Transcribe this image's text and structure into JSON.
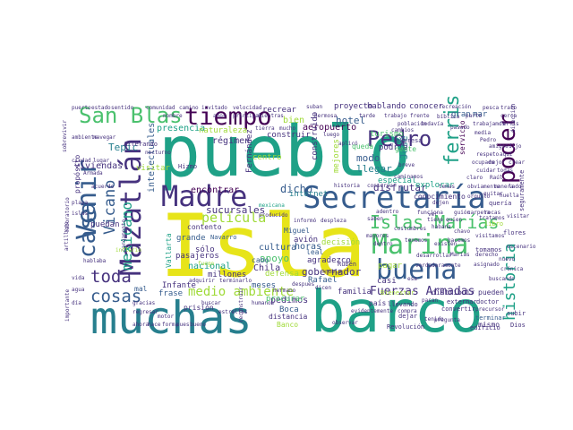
{
  "cloud": {
    "background": "#ffffff",
    "palette": {
      "yellow": "#e7e419",
      "lime": "#a0da39",
      "green": "#4ac16d",
      "teal": "#1fa187",
      "blue": "#277f8e",
      "navy": "#365c8d",
      "indigo": "#46327e",
      "purple": "#440154"
    },
    "words": [
      {
        "text": "pueblo",
        "color": "teal"
      },
      {
        "text": "Isla",
        "color": "yellow"
      },
      {
        "text": "barco",
        "color": "teal"
      },
      {
        "text": "muchas",
        "color": "blue"
      },
      {
        "text": "Secretaría",
        "color": "navy"
      },
      {
        "text": "Madre",
        "color": "indigo"
      },
      {
        "text": "Marina",
        "color": "green"
      },
      {
        "text": "buena",
        "color": "navy"
      },
      {
        "text": "Mazatlán",
        "color": "indigo"
      },
      {
        "text": "tiempo",
        "color": "purple"
      },
      {
        "text": "San Blas",
        "color": "green"
      },
      {
        "text": "Venir",
        "color": "navy"
      },
      {
        "text": "Pedro",
        "color": "indigo"
      },
      {
        "text": "poder",
        "color": "purple"
      },
      {
        "text": "ferris",
        "color": "teal"
      },
      {
        "text": "Islas Marías",
        "color": "green"
      },
      {
        "text": "historia",
        "color": "teal"
      },
      {
        "text": "casa",
        "color": "navy"
      },
      {
        "text": "Vicano",
        "color": "navy"
      },
      {
        "text": "mexicano",
        "color": "teal"
      },
      {
        "text": "película",
        "color": "lime"
      },
      {
        "text": "toda",
        "color": "indigo"
      },
      {
        "text": "cosas",
        "color": "navy"
      },
      {
        "text": "medio ambiente",
        "color": "lime"
      },
      {
        "text": "Fuerzas Armadas",
        "color": "indigo"
      },
      {
        "text": "gobernador",
        "color": "indigo"
      },
      {
        "text": "sucursales",
        "color": "indigo"
      },
      {
        "text": "disfrutar",
        "color": "indigo"
      },
      {
        "text": "dicho",
        "color": "navy"
      },
      {
        "text": "modo",
        "color": "navy"
      },
      {
        "text": "llegar",
        "color": "blue"
      },
      {
        "text": "hotel",
        "color": "navy"
      },
      {
        "text": "Tepic",
        "color": "blue"
      },
      {
        "text": "presencia",
        "color": "teal"
      },
      {
        "text": "viviendas",
        "color": "indigo"
      },
      {
        "text": "encontrar",
        "color": "purple"
      },
      {
        "text": "construir",
        "color": "indigo"
      },
      {
        "text": "aeropuerto",
        "color": "purple"
      },
      {
        "text": "régimen",
        "color": "indigo"
      },
      {
        "text": "bien",
        "color": "lime"
      },
      {
        "text": "centro",
        "color": "lime"
      },
      {
        "text": "proyecto",
        "color": "indigo"
      },
      {
        "text": "hablando",
        "color": "indigo"
      },
      {
        "text": "conocer",
        "color": "indigo"
      },
      {
        "text": "turismo",
        "color": "green"
      },
      {
        "text": "gran",
        "color": "navy"
      },
      {
        "text": "José",
        "color": "blue"
      },
      {
        "text": "podría",
        "color": "indigo"
      },
      {
        "text": "especial",
        "color": "teal"
      },
      {
        "text": "explorar",
        "color": "teal"
      },
      {
        "text": "conocimiento",
        "color": "indigo"
      },
      {
        "text": "cultura",
        "color": "navy"
      },
      {
        "text": "apoyo",
        "color": "green"
      },
      {
        "text": "horas",
        "color": "navy"
      },
      {
        "text": "agradezco",
        "color": "indigo"
      },
      {
        "text": "pasajeros",
        "color": "indigo"
      },
      {
        "text": "nacional",
        "color": "teal"
      },
      {
        "text": "grande",
        "color": "navy"
      },
      {
        "text": "contento",
        "color": "indigo"
      },
      {
        "text": "puedan",
        "color": "indigo"
      },
      {
        "text": "defensa",
        "color": "lime"
      },
      {
        "text": "Chila",
        "color": "indigo"
      },
      {
        "text": "cabo",
        "color": "navy"
      },
      {
        "text": "meses",
        "color": "navy"
      },
      {
        "text": "sólo",
        "color": "indigo"
      },
      {
        "text": "pedimos",
        "color": "indigo"
      },
      {
        "text": "Boca",
        "color": "navy"
      },
      {
        "text": "distancia",
        "color": "indigo"
      },
      {
        "text": "Banco",
        "color": "lime"
      },
      {
        "text": "Rafael",
        "color": "navy"
      },
      {
        "text": "leal",
        "color": "navy"
      },
      {
        "text": "decisión",
        "color": "lime"
      },
      {
        "text": "avión",
        "color": "indigo"
      },
      {
        "text": "Miguel",
        "color": "navy"
      },
      {
        "text": "frase",
        "color": "navy"
      },
      {
        "text": "mal",
        "color": "navy"
      },
      {
        "text": "familia",
        "color": "indigo"
      },
      {
        "text": "casi",
        "color": "indigo"
      },
      {
        "text": "pagar",
        "color": "lime"
      },
      {
        "text": "país",
        "color": "indigo"
      },
      {
        "text": "pueden",
        "color": "indigo"
      },
      {
        "text": "distribuir",
        "color": "indigo"
      },
      {
        "text": "mismo",
        "color": "indigo"
      },
      {
        "text": "prisión",
        "color": "indigo"
      },
      {
        "text": "intelectuales",
        "color": "navy"
      },
      {
        "text": "visitar",
        "color": "lime"
      },
      {
        "text": "internet",
        "color": "blue"
      },
      {
        "text": "Infante",
        "color": "indigo"
      },
      {
        "text": "millones",
        "color": "indigo"
      },
      {
        "text": "Navarro",
        "color": "navy"
      },
      {
        "text": "Bienestar",
        "color": "lime"
      },
      {
        "text": "Revolución",
        "color": "indigo"
      },
      {
        "text": "Fernández",
        "color": "indigo"
      },
      {
        "text": "naturaleza",
        "color": "lime"
      },
      {
        "text": "recrear",
        "color": "indigo"
      },
      {
        "text": "Alterando",
        "color": "indigo"
      },
      {
        "text": "propósito",
        "color": "indigo"
      },
      {
        "text": "Hizmo",
        "color": "indigo"
      },
      {
        "text": "Vallarta",
        "color": "teal"
      },
      {
        "text": "mejores",
        "color": "lime"
      },
      {
        "text": "gente",
        "color": "green"
      },
      {
        "text": "mar",
        "color": "navy"
      },
      {
        "text": "servicio",
        "color": "purple"
      },
      {
        "text": "seguramente",
        "color": "indigo"
      },
      {
        "text": "terminar",
        "color": "navy"
      },
      {
        "text": "flores",
        "color": "indigo"
      },
      {
        "text": "tomamos",
        "color": "indigo"
      },
      {
        "text": "llevando",
        "color": "indigo"
      },
      {
        "text": "convertir",
        "color": "indigo"
      },
      {
        "text": "dejar",
        "color": "indigo"
      },
      {
        "text": "doctor",
        "color": "indigo"
      },
      {
        "text": "externar",
        "color": "indigo"
      },
      {
        "text": "subir",
        "color": "indigo"
      },
      {
        "text": "Rubén",
        "color": "indigo"
      },
      {
        "text": "Armada",
        "color": "indigo"
      },
      {
        "text": "quería",
        "color": "indigo"
      },
      {
        "text": "edificio",
        "color": "indigo"
      },
      {
        "text": "expresa",
        "color": "indigo"
      },
      {
        "text": "libro",
        "color": "lime"
      },
      {
        "text": "Dios",
        "color": "indigo"
      },
      {
        "text": "velocidad",
        "color": "indigo"
      },
      {
        "text": "suban",
        "color": "indigo"
      },
      {
        "text": "recreación",
        "color": "indigo"
      },
      {
        "text": "bíblica",
        "color": "indigo"
      },
      {
        "text": "pasado",
        "color": "indigo"
      },
      {
        "text": "media",
        "color": "indigo"
      },
      {
        "text": "Pedro",
        "color": "indigo"
      },
      {
        "text": "hablaba",
        "color": "indigo"
      },
      {
        "text": "cargamento",
        "color": "indigo"
      },
      {
        "text": "inflario",
        "color": "lime"
      },
      {
        "text": "sobrevivir",
        "color": "indigo"
      },
      {
        "text": "adquirir",
        "color": "indigo"
      },
      {
        "text": "terminarlo",
        "color": "indigo"
      },
      {
        "text": "humanos",
        "color": "indigo"
      },
      {
        "text": "buscar",
        "color": "indigo"
      },
      {
        "text": "fuego",
        "color": "lime"
      },
      {
        "text": "motor",
        "color": "indigo"
      },
      {
        "text": "importante",
        "color": "indigo"
      },
      {
        "text": "artillero",
        "color": "indigo"
      },
      {
        "text": "laboratorio",
        "color": "indigo"
      },
      {
        "text": "claro",
        "color": "indigo"
      },
      {
        "text": "breve",
        "color": "indigo"
      },
      {
        "text": "dejen",
        "color": "indigo"
      },
      {
        "text": "carpeta",
        "color": "indigo"
      },
      {
        "text": "quitar",
        "color": "indigo"
      },
      {
        "text": "observar",
        "color": "indigo"
      },
      {
        "text": "acuerdo",
        "color": "indigo"
      },
      {
        "text": "nocturno",
        "color": "indigo"
      },
      {
        "text": "aplicó",
        "color": "indigo"
      },
      {
        "text": "cambios",
        "color": "indigo"
      },
      {
        "text": "precursor",
        "color": "indigo"
      },
      {
        "text": "estrellas",
        "color": "indigo"
      },
      {
        "text": "reconstruir",
        "color": "indigo"
      },
      {
        "text": "hermano",
        "color": "indigo"
      },
      {
        "text": "dicen",
        "color": "indigo"
      },
      {
        "text": "informó",
        "color": "indigo"
      },
      {
        "text": "mexicana",
        "color": "teal"
      },
      {
        "text": "producido",
        "color": "indigo"
      },
      {
        "text": "despues",
        "color": "indigo"
      },
      {
        "text": "ver",
        "color": "indigo"
      },
      {
        "text": "guión",
        "color": "indigo"
      },
      {
        "text": "rocas",
        "color": "indigo"
      },
      {
        "text": "noble",
        "color": "indigo"
      },
      {
        "text": "despleza",
        "color": "indigo"
      },
      {
        "text": "habana",
        "color": "indigo"
      },
      {
        "text": "visitamos",
        "color": "indigo"
      },
      {
        "text": "adentro",
        "color": "indigo"
      },
      {
        "text": "funciona",
        "color": "indigo"
      },
      {
        "text": "pasan",
        "color": "indigo"
      },
      {
        "text": "Raúl",
        "color": "indigo"
      },
      {
        "text": "queda",
        "color": "green"
      },
      {
        "text": "caminamos",
        "color": "indigo"
      },
      {
        "text": "orgullo",
        "color": "indigo"
      },
      {
        "text": "chavo",
        "color": "indigo"
      },
      {
        "text": "huella",
        "color": "indigo"
      },
      {
        "text": "ocupado",
        "color": "indigo"
      },
      {
        "text": "tenemos",
        "color": "indigo"
      },
      {
        "text": "hacemos",
        "color": "indigo"
      },
      {
        "text": "tenido",
        "color": "indigo"
      },
      {
        "text": "historia",
        "color": "indigo"
      },
      {
        "text": "evidentemente",
        "color": "indigo"
      },
      {
        "text": "compra",
        "color": "indigo"
      },
      {
        "text": "buscando",
        "color": "indigo"
      },
      {
        "text": "pregunta",
        "color": "indigo"
      },
      {
        "text": "nuevo",
        "color": "indigo"
      },
      {
        "text": "procurar",
        "color": "green"
      },
      {
        "text": "construido",
        "color": "indigo"
      },
      {
        "text": "esa",
        "color": "indigo"
      },
      {
        "text": "verdaderamente",
        "color": "indigo"
      },
      {
        "text": "asignado",
        "color": "indigo"
      },
      {
        "text": "crónica",
        "color": "indigo"
      },
      {
        "text": "desarrollar",
        "color": "indigo"
      },
      {
        "text": "Marías",
        "color": "indigo"
      },
      {
        "text": "derecho",
        "color": "indigo"
      },
      {
        "text": "escenario",
        "color": "indigo"
      },
      {
        "text": "existen",
        "color": "indigo"
      },
      {
        "text": "dentro",
        "color": "indigo"
      },
      {
        "text": "mayores",
        "color": "indigo"
      },
      {
        "text": "costumbres",
        "color": "indigo"
      },
      {
        "text": "saben",
        "color": "indigo"
      },
      {
        "text": "tratamos",
        "color": "indigo"
      },
      {
        "text": "visitar",
        "color": "indigo"
      },
      {
        "text": "tiene",
        "color": "indigo"
      },
      {
        "text": "quien",
        "color": "indigo"
      },
      {
        "text": "manera",
        "color": "indigo"
      },
      {
        "text": "obviamente",
        "color": "indigo"
      },
      {
        "text": "lado",
        "color": "indigo"
      },
      {
        "text": "temas",
        "color": "indigo"
      },
      {
        "text": "cuidar",
        "color": "indigo"
      },
      {
        "text": "todas",
        "color": "indigo"
      },
      {
        "text": "crear",
        "color": "indigo"
      },
      {
        "text": "mejor",
        "color": "indigo"
      },
      {
        "text": "respeto",
        "color": "indigo"
      },
      {
        "text": "aquí",
        "color": "indigo"
      },
      {
        "text": "amigos",
        "color": "indigo"
      },
      {
        "text": "dijo",
        "color": "indigo"
      },
      {
        "text": "conservar",
        "color": "indigo"
      },
      {
        "text": "trabajamos",
        "color": "indigo"
      },
      {
        "text": "ferris",
        "color": "indigo"
      },
      {
        "text": "pesca",
        "color": "indigo"
      },
      {
        "text": "trato",
        "color": "indigo"
      },
      {
        "text": "cerca",
        "color": "indigo"
      },
      {
        "text": "dirección",
        "color": "indigo"
      },
      {
        "text": "parte",
        "color": "indigo"
      },
      {
        "text": "frente",
        "color": "indigo"
      },
      {
        "text": "todavía",
        "color": "indigo"
      },
      {
        "text": "población",
        "color": "indigo"
      },
      {
        "text": "tarde",
        "color": "indigo"
      },
      {
        "text": "trabajo",
        "color": "indigo"
      },
      {
        "text": "hermosa",
        "color": "indigo"
      },
      {
        "text": "luego",
        "color": "indigo"
      },
      {
        "text": "mucho",
        "color": "indigo"
      },
      {
        "text": "tierra",
        "color": "indigo"
      },
      {
        "text": "principal",
        "color": "indigo"
      },
      {
        "text": "años",
        "color": "indigo"
      },
      {
        "text": "mientras",
        "color": "indigo"
      },
      {
        "text": "nombre",
        "color": "indigo"
      },
      {
        "text": "comunidad",
        "color": "indigo"
      },
      {
        "text": "camino",
        "color": "indigo"
      },
      {
        "text": "invitado",
        "color": "indigo"
      },
      {
        "text": "puerto",
        "color": "indigo"
      },
      {
        "text": "estado",
        "color": "indigo"
      },
      {
        "text": "sentido",
        "color": "indigo"
      },
      {
        "text": "ambiente",
        "color": "indigo"
      },
      {
        "text": "navegar",
        "color": "indigo"
      },
      {
        "text": "ciudad",
        "color": "indigo"
      },
      {
        "text": "lugar",
        "color": "indigo"
      },
      {
        "text": "playa",
        "color": "indigo"
      },
      {
        "text": "islas",
        "color": "indigo"
      },
      {
        "text": "vida",
        "color": "indigo"
      },
      {
        "text": "agua",
        "color": "indigo"
      },
      {
        "text": "día",
        "color": "indigo"
      },
      {
        "text": "gracias",
        "color": "indigo"
      },
      {
        "text": "regresar",
        "color": "indigo"
      },
      {
        "text": "ahora",
        "color": "indigo"
      },
      {
        "text": "hace",
        "color": "indigo"
      },
      {
        "text": "forma",
        "color": "indigo"
      },
      {
        "text": "pues",
        "color": "indigo"
      },
      {
        "text": "bueno",
        "color": "indigo"
      }
    ]
  }
}
